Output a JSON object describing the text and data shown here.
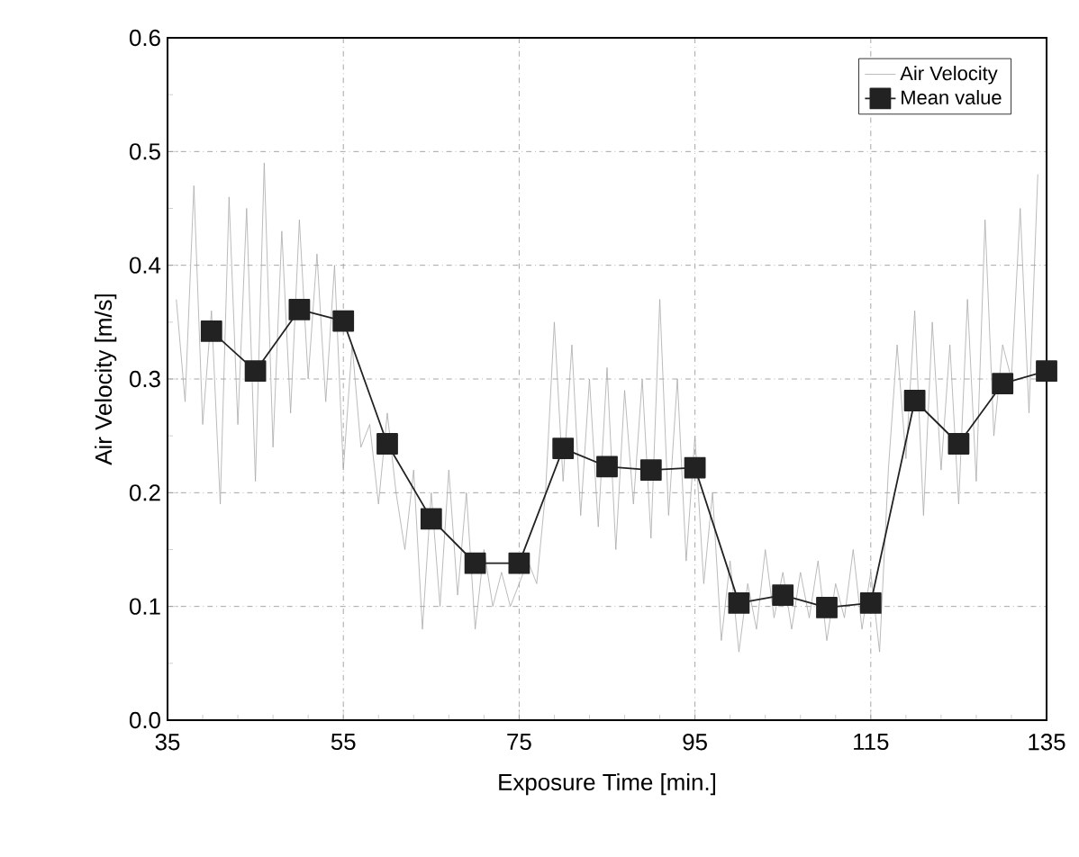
{
  "chart_data": {
    "type": "line",
    "xlabel": "Exposure Time [min.]",
    "ylabel": "Air Velocity [m/s]",
    "xlim": [
      35,
      135
    ],
    "xticks": [
      35,
      55,
      75,
      95,
      115,
      135
    ],
    "ylim": [
      0,
      0.6
    ],
    "yticks": [
      {
        "value": 0,
        "label": "0.0"
      },
      0.1,
      0.2,
      0.3,
      0.4,
      0.5,
      0.6
    ],
    "grid": true,
    "legend": "top right",
    "series": [
      {
        "name": "Air Velocity",
        "color": "#aaaaaa",
        "line_style": "solid",
        "marker": "none",
        "x": [
          36,
          37,
          38,
          39,
          40,
          41,
          42,
          43,
          44,
          45,
          46,
          47,
          48,
          49,
          50,
          51,
          52,
          53,
          54,
          55,
          56,
          57,
          58,
          59,
          60,
          61,
          62,
          63,
          64,
          65,
          66,
          67,
          68,
          69,
          70,
          71,
          72,
          73,
          74,
          76,
          77,
          78,
          79,
          80,
          81,
          82,
          83,
          84,
          85,
          86,
          87,
          88,
          89,
          90,
          91,
          92,
          93,
          94,
          95,
          96,
          97,
          98,
          99,
          100,
          101,
          102,
          103,
          104,
          105,
          106,
          107,
          108,
          109,
          110,
          111,
          112,
          113,
          114,
          115,
          116,
          117,
          118,
          119,
          120,
          121,
          122,
          123,
          124,
          125,
          126,
          127,
          128,
          129,
          130,
          131,
          132,
          133,
          134
        ],
        "values": [
          0.37,
          0.28,
          0.47,
          0.26,
          0.36,
          0.19,
          0.46,
          0.26,
          0.45,
          0.21,
          0.49,
          0.24,
          0.43,
          0.27,
          0.44,
          0.3,
          0.41,
          0.28,
          0.4,
          0.22,
          0.33,
          0.24,
          0.26,
          0.19,
          0.27,
          0.2,
          0.15,
          0.22,
          0.08,
          0.2,
          0.1,
          0.22,
          0.11,
          0.2,
          0.08,
          0.15,
          0.1,
          0.13,
          0.1,
          0.14,
          0.12,
          0.2,
          0.35,
          0.21,
          0.33,
          0.18,
          0.3,
          0.17,
          0.31,
          0.15,
          0.29,
          0.19,
          0.3,
          0.16,
          0.37,
          0.18,
          0.3,
          0.14,
          0.25,
          0.12,
          0.2,
          0.07,
          0.14,
          0.06,
          0.12,
          0.08,
          0.15,
          0.09,
          0.13,
          0.08,
          0.13,
          0.09,
          0.14,
          0.07,
          0.12,
          0.09,
          0.15,
          0.08,
          0.13,
          0.06,
          0.22,
          0.33,
          0.23,
          0.36,
          0.18,
          0.35,
          0.22,
          0.33,
          0.19,
          0.37,
          0.21,
          0.44,
          0.25,
          0.33,
          0.3,
          0.45,
          0.27,
          0.48
        ]
      },
      {
        "name": "Mean value",
        "color": "#222222",
        "line_style": "solid",
        "marker": "square",
        "x": [
          40,
          45,
          50,
          55,
          60,
          65,
          70,
          75,
          80,
          85,
          90,
          95,
          100,
          105,
          110,
          115,
          120,
          125,
          130,
          135
        ],
        "values": [
          0.342,
          0.307,
          0.361,
          0.351,
          0.243,
          0.177,
          0.138,
          0.138,
          0.239,
          0.223,
          0.22,
          0.222,
          0.103,
          0.11,
          0.099,
          0.103,
          0.281,
          0.243,
          0.296,
          0.307
        ]
      }
    ]
  }
}
